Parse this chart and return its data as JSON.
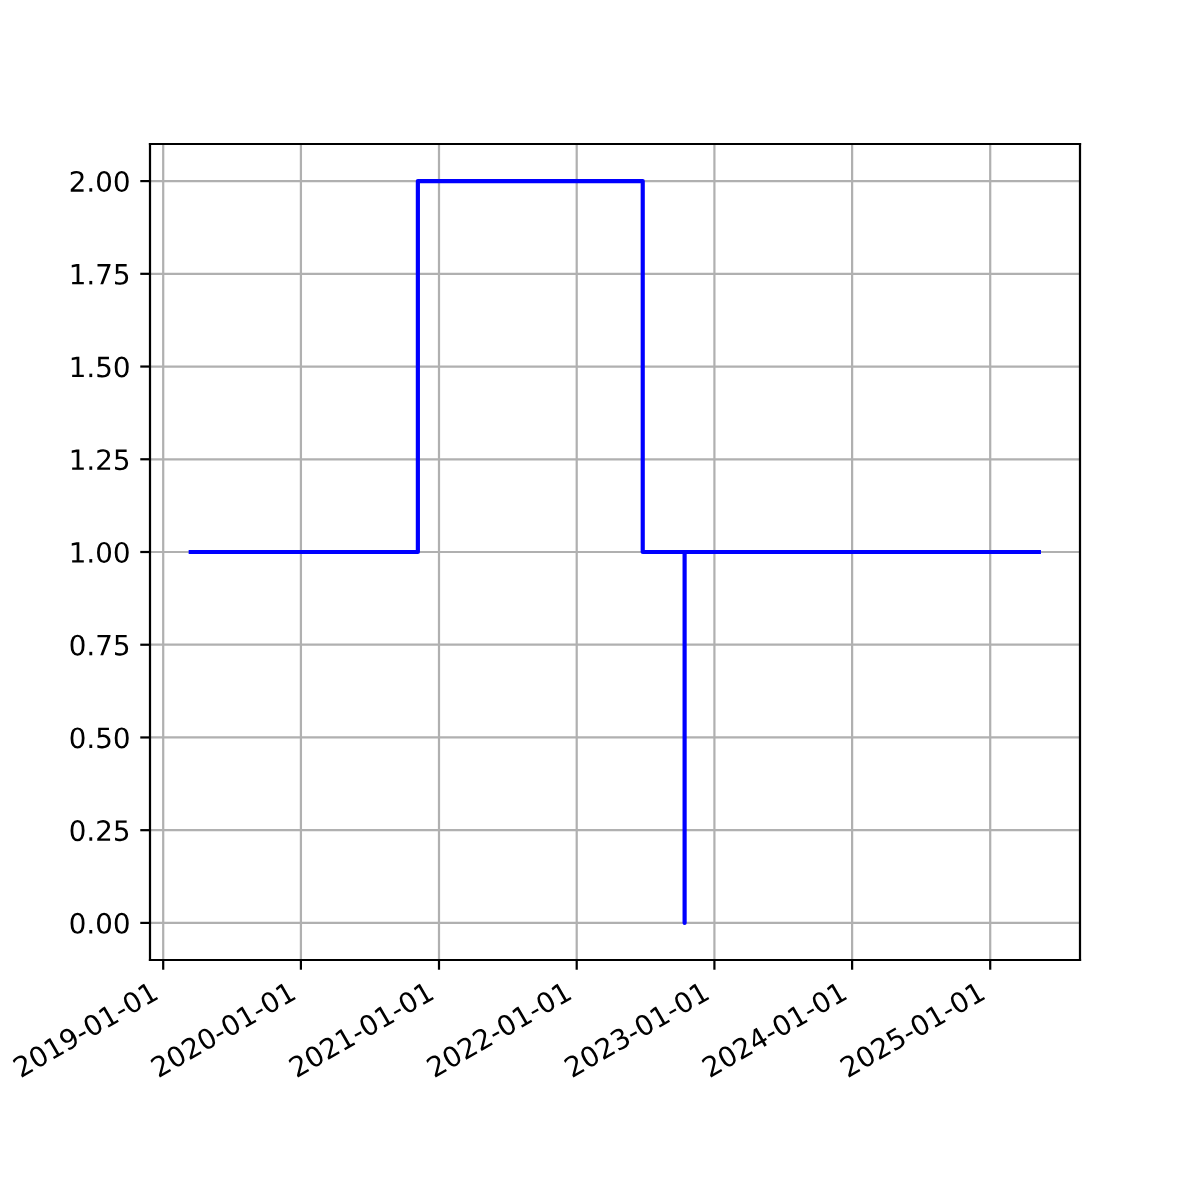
{
  "chart_data": {
    "type": "step",
    "x": [
      "2019-03-15",
      "2020-11-06",
      "2022-06-25",
      "2022-10-14",
      "2022-10-14",
      "2025-05-10"
    ],
    "series": [
      {
        "color": "#0000ff",
        "values": [
          1,
          2,
          1,
          0,
          1,
          1
        ]
      }
    ],
    "xlim": [
      "2018-11-27",
      "2025-08-27"
    ],
    "xticks": [
      {
        "value": "2019-01-01",
        "label": "2019-01-01"
      },
      {
        "value": "2020-01-01",
        "label": "2020-01-01"
      },
      {
        "value": "2021-01-01",
        "label": "2021-01-01"
      },
      {
        "value": "2022-01-01",
        "label": "2022-01-01"
      },
      {
        "value": "2023-01-01",
        "label": "2023-01-01"
      },
      {
        "value": "2024-01-01",
        "label": "2024-01-01"
      },
      {
        "value": "2025-01-01",
        "label": "2025-01-01"
      }
    ],
    "ylim": [
      -0.1,
      2.1
    ],
    "yticks": [
      {
        "value": 0,
        "label": "0.00"
      },
      {
        "value": 0.25,
        "label": "0.25"
      },
      {
        "value": 0.5,
        "label": "0.50"
      },
      {
        "value": 0.75,
        "label": "0.75"
      },
      {
        "value": 1,
        "label": "1.00"
      },
      {
        "value": 1.25,
        "label": "1.25"
      },
      {
        "value": 1.5,
        "label": "1.50"
      },
      {
        "value": 1.75,
        "label": "1.75"
      },
      {
        "value": 2,
        "label": "2.00"
      }
    ],
    "grid": true
  }
}
